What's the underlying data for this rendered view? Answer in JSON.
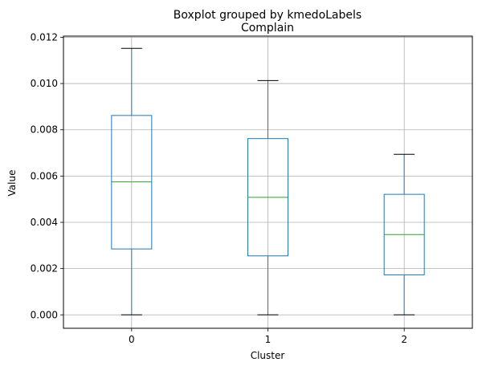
{
  "chart_data": {
    "type": "box",
    "suptitle": "Boxplot grouped by kmedoLabels",
    "title": "Complain",
    "xlabel": "Cluster",
    "ylabel": "Value",
    "ylim": [
      -0.00058,
      0.01205
    ],
    "yticks": [
      "0.000",
      "0.002",
      "0.004",
      "0.006",
      "0.008",
      "0.010",
      "0.012"
    ],
    "ytick_values": [
      0,
      0.002,
      0.004,
      0.006,
      0.008,
      0.01,
      0.012
    ],
    "grid": true,
    "categories": [
      "0",
      "1",
      "2"
    ],
    "boxes": [
      {
        "category": "0",
        "whisker_low": 0.0,
        "q1": 0.00285,
        "median": 0.00575,
        "q3": 0.00862,
        "whisker_high": 0.01152
      },
      {
        "category": "1",
        "whisker_low": 0.0,
        "q1": 0.00255,
        "median": 0.00508,
        "q3": 0.00762,
        "whisker_high": 0.01013
      },
      {
        "category": "2",
        "whisker_low": 0.0,
        "q1": 0.00173,
        "median": 0.00347,
        "q3": 0.00521,
        "whisker_high": 0.00694
      }
    ],
    "colors": {
      "box": "#1f77b4",
      "median": "#2ca02c",
      "whisker_cap": "#000000",
      "grid": "#b0b0b0",
      "axes": "#000000"
    }
  }
}
